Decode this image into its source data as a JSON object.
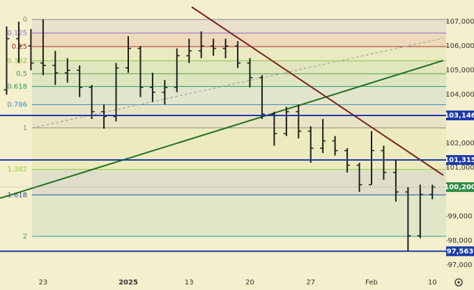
{
  "chart_data": {
    "type": "candlestick",
    "bar_color": "#1c1c1c",
    "categories": [
      null,
      null,
      null,
      "23",
      null,
      null,
      null,
      null,
      null,
      null,
      "2025",
      null,
      null,
      null,
      null,
      "13",
      null,
      null,
      null,
      null,
      "20",
      null,
      null,
      null,
      null,
      "27",
      null,
      null,
      null,
      null,
      "Feb",
      null,
      null,
      null,
      null,
      "10"
    ],
    "open": [
      104200,
      106300,
      106000,
      105300,
      105200,
      104900,
      105000,
      104300,
      103300,
      103100,
      105100,
      105900,
      104300,
      104100,
      104300,
      105600,
      105800,
      106000,
      105900,
      106000,
      105300,
      104700,
      103200,
      102400,
      103300,
      102500,
      101800,
      102100,
      101700,
      101100,
      100300,
      101700,
      100800,
      100000,
      98200,
      99900
    ],
    "high": [
      106800,
      107000,
      106700,
      107090,
      105800,
      105500,
      105200,
      104400,
      103600,
      105300,
      106400,
      106000,
      104900,
      104600,
      105900,
      106300,
      106600,
      106300,
      106300,
      106200,
      105500,
      104800,
      103300,
      103500,
      103600,
      102700,
      103000,
      102300,
      101800,
      101200,
      102500,
      101900,
      101300,
      100200,
      100300,
      100300
    ],
    "low": [
      104000,
      105300,
      105000,
      104800,
      104400,
      104500,
      103900,
      103000,
      102600,
      102900,
      104900,
      103900,
      103700,
      103600,
      104100,
      105300,
      105500,
      105600,
      105500,
      105100,
      104300,
      103000,
      101900,
      102300,
      102200,
      101200,
      101600,
      101500,
      100800,
      100000,
      100300,
      100500,
      99600,
      97563,
      98100,
      99700
    ],
    "close": [
      106300,
      106000,
      105300,
      105200,
      104900,
      105000,
      104300,
      103300,
      103100,
      105100,
      105900,
      104300,
      104100,
      104300,
      105600,
      105800,
      106000,
      105900,
      106000,
      105300,
      104700,
      103200,
      102400,
      103300,
      102500,
      101800,
      102100,
      101700,
      101100,
      100300,
      101700,
      100800,
      100000,
      98200,
      99900,
      100200
    ],
    "ylim": [
      96600,
      107890
    ],
    "yticks": [
      {
        "value": 97000,
        "label": "97,000"
      },
      {
        "value": 98000,
        "label": "98,000"
      },
      {
        "value": 99000,
        "label": "99,000"
      },
      {
        "value": 101000,
        "label": "101,000"
      },
      {
        "value": 102000,
        "label": "102,000"
      },
      {
        "value": 104000,
        "label": "104,000"
      },
      {
        "value": 105000,
        "label": "105,000"
      },
      {
        "value": 106000,
        "label": "106,000"
      },
      {
        "value": 107000,
        "label": "107,000"
      }
    ],
    "fib": {
      "start": 107090,
      "end": 102633,
      "levels": [
        0,
        0.125,
        0.25,
        0.382,
        0.5,
        0.618,
        0.786,
        1,
        1.382,
        1.618,
        2
      ],
      "colors": [
        "#8a8a8a",
        "#8e6fd0",
        "#b52a2a",
        "#8bc34a",
        "#43a047",
        "#1e9e5e",
        "#3f8fc0",
        "#8a8a8a",
        "#9ccc3a",
        "#1f4fb0",
        "#26a69a"
      ]
    },
    "price_lines": [
      {
        "value": 103146,
        "label": "103,146",
        "color": "#1d3aa8",
        "style": "solid"
      },
      {
        "value": 101315,
        "label": "101,315",
        "color": "#1d3aa8",
        "style": "solid"
      },
      {
        "value": 100200,
        "label": "100,200",
        "color": "#2f8f46",
        "style": "dotted"
      },
      {
        "value": 97563,
        "label": "97,563",
        "color": "#1d3aa8",
        "style": "solid"
      }
    ]
  }
}
